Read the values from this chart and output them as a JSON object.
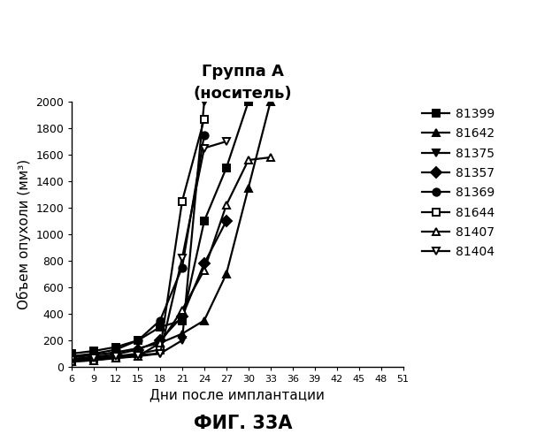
{
  "title_line1": "Группа А",
  "title_line2": "(носитель)",
  "xlabel": "Дни после имплантации",
  "ylabel": "Объем опухоли (мм³)",
  "caption": "ФИГ. 33А",
  "xlim": [
    6,
    51
  ],
  "ylim": [
    0,
    2000
  ],
  "xticks": [
    6,
    9,
    12,
    15,
    18,
    21,
    24,
    27,
    30,
    33,
    36,
    39,
    42,
    45,
    48,
    51
  ],
  "yticks": [
    0,
    200,
    400,
    600,
    800,
    1000,
    1200,
    1400,
    1600,
    1800,
    2000
  ],
  "series": [
    {
      "label": "81399",
      "marker": "s",
      "fillstyle": "full",
      "x": [
        6,
        9,
        12,
        15,
        18,
        21,
        24,
        27,
        30
      ],
      "y": [
        100,
        120,
        150,
        200,
        300,
        350,
        1100,
        1500,
        2000
      ]
    },
    {
      "label": "81642",
      "marker": "^",
      "fillstyle": "full",
      "x": [
        6,
        9,
        12,
        15,
        18,
        21,
        24,
        27,
        30,
        33
      ],
      "y": [
        70,
        90,
        110,
        140,
        180,
        250,
        350,
        700,
        1350,
        2000
      ]
    },
    {
      "label": "81375",
      "marker": "v",
      "fillstyle": "full",
      "x": [
        6,
        9,
        12,
        15,
        18,
        21,
        24
      ],
      "y": [
        40,
        50,
        70,
        80,
        100,
        200,
        2000
      ]
    },
    {
      "label": "81357",
      "marker": "D",
      "fillstyle": "full",
      "x": [
        6,
        9,
        12,
        15,
        18,
        21,
        24,
        27
      ],
      "y": [
        60,
        75,
        95,
        130,
        200,
        380,
        780,
        1100
      ]
    },
    {
      "label": "81369",
      "marker": "o",
      "fillstyle": "full",
      "x": [
        6,
        9,
        12,
        15,
        18,
        21,
        24
      ],
      "y": [
        80,
        100,
        130,
        200,
        350,
        750,
        1750
      ]
    },
    {
      "label": "81644",
      "marker": "s",
      "fillstyle": "none",
      "x": [
        6,
        9,
        12,
        15,
        18,
        21,
        24
      ],
      "y": [
        50,
        60,
        80,
        100,
        130,
        1250,
        1870
      ]
    },
    {
      "label": "81407",
      "marker": "^",
      "fillstyle": "none",
      "x": [
        6,
        9,
        12,
        15,
        18,
        21,
        24,
        27,
        30,
        33
      ],
      "y": [
        40,
        50,
        65,
        80,
        180,
        430,
        730,
        1220,
        1560,
        1580
      ]
    },
    {
      "label": "81404",
      "marker": "v",
      "fillstyle": "none",
      "x": [
        6,
        9,
        12,
        15,
        18,
        21,
        24,
        27
      ],
      "y": [
        55,
        65,
        80,
        90,
        100,
        820,
        1650,
        1700
      ]
    }
  ],
  "line_color": "#000000",
  "line_width": 1.6,
  "marker_size": 6,
  "title_fontsize": 13,
  "axis_label_fontsize": 11,
  "tick_fontsize": 9,
  "legend_fontsize": 10,
  "caption_fontsize": 15,
  "background_color": "#ffffff"
}
